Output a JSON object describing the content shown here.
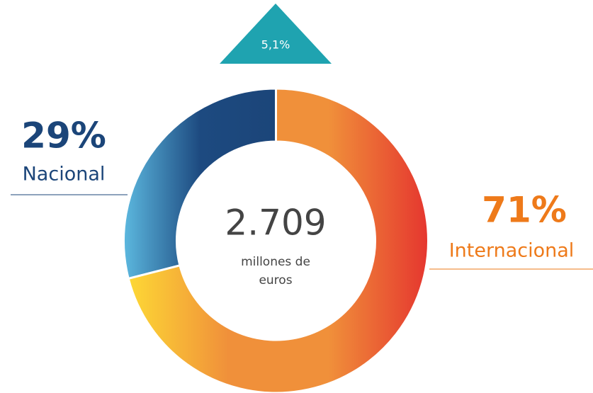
{
  "chart_data": {
    "type": "donut",
    "categories": [
      "Nacional",
      "Internacional"
    ],
    "values": [
      29,
      71
    ],
    "value_labels": [
      "29%",
      "71%"
    ],
    "colors": [
      [
        "#5cb8df",
        "#1d4a80",
        "#1b4579"
      ],
      [
        "#fdd835",
        "#f0903a",
        "#f0903a",
        "#e5362f"
      ]
    ],
    "label_colors": [
      "#1b4579",
      "#ee7a1a"
    ],
    "direction": "counterclockwise",
    "center_label": "2.709",
    "center_unit": [
      "millones de",
      "euros"
    ],
    "annotation": "5,1%",
    "annotation_color": "#1fa3b0"
  }
}
